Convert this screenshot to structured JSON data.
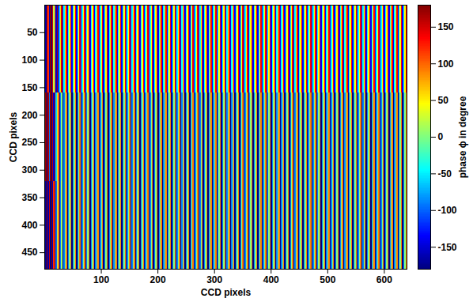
{
  "chart_data": {
    "type": "heatmap",
    "xlabel": "CCD pixels",
    "ylabel": "CCD pixels",
    "xlim": [
      0,
      640
    ],
    "ylim": [
      480,
      0
    ],
    "xticks": [
      100,
      200,
      300,
      400,
      500,
      600
    ],
    "yticks": [
      50,
      100,
      150,
      200,
      250,
      300,
      350,
      400,
      450
    ],
    "z": [
      [
        170,
        -170,
        160,
        120,
        -160,
        175,
        -175,
        150,
        20,
        100,
        -150,
        170,
        -120,
        -30,
        60,
        150,
        -135,
        -45,
        45,
        135,
        -135,
        -45,
        45,
        135,
        -135,
        -45,
        45,
        135,
        -135,
        -45,
        45,
        135,
        -135,
        -45,
        45,
        135,
        -135,
        -45,
        45,
        135,
        -135,
        -45,
        45,
        135,
        -135,
        -45,
        45,
        135,
        -135,
        -45,
        45,
        135,
        -135,
        -45,
        45,
        135,
        -135,
        -45,
        45,
        135,
        -135,
        -45,
        45,
        135,
        -135,
        -45,
        45,
        135,
        -135,
        -45,
        45,
        135,
        -135,
        -45,
        45,
        135,
        -135,
        -45,
        45,
        135,
        -135,
        -45,
        45,
        135,
        -135,
        -45,
        45,
        135,
        -135,
        -45,
        45,
        135,
        -135,
        -45,
        45,
        135,
        -135,
        -45,
        45,
        135,
        -135,
        -45,
        45,
        135,
        -135,
        -45,
        45,
        135,
        -135,
        -45,
        45,
        135,
        -135,
        -45,
        45,
        135,
        -135,
        -45,
        45,
        135,
        -135,
        -45,
        45,
        135,
        -135,
        -45,
        45,
        135,
        -135,
        -45,
        45,
        135,
        -135,
        -45,
        45,
        135,
        -135,
        -45,
        45,
        135,
        -135,
        -45,
        45,
        135,
        -135,
        -45,
        45,
        135,
        -135,
        -45,
        45,
        135,
        -135,
        -45,
        45,
        135,
        -135,
        -45,
        45,
        135,
        -135,
        -45,
        45,
        135,
        -135,
        -45,
        45,
        135,
        -135,
        -45,
        45,
        135,
        -135,
        -45,
        45,
        135,
        -135,
        -45,
        45,
        135,
        -135,
        -45,
        45,
        135,
        -135,
        -45,
        45,
        135,
        -135,
        -45,
        45,
        135,
        -135,
        -45,
        45,
        135,
        -135,
        -45,
        45,
        135,
        -135,
        -45,
        45,
        135,
        -135,
        -45,
        45,
        135,
        -135,
        -45,
        45,
        135,
        -135,
        -45,
        45,
        135,
        -135,
        -45,
        45,
        135,
        -135,
        -45,
        45,
        135,
        -135,
        -45,
        45,
        135,
        -135,
        -45,
        45,
        135,
        -135,
        -45,
        45,
        135,
        -135,
        -45,
        45,
        135,
        -135,
        -45,
        45,
        135,
        -135,
        -45,
        45,
        135,
        -135,
        -45,
        45,
        135,
        -135,
        -45,
        45,
        135,
        -135,
        -45,
        45,
        135,
        -135,
        -45,
        45,
        135,
        -135,
        -45,
        45,
        135,
        -135,
        -45,
        45,
        135,
        -135,
        -45,
        45,
        135,
        -135,
        -45,
        45,
        135,
        -135,
        -45,
        45,
        135,
        -135,
        -45,
        45,
        135,
        -135,
        -45,
        45,
        135,
        -135,
        -45,
        45,
        135,
        -135,
        -45,
        45,
        135,
        -135,
        -45,
        45,
        135,
        -135,
        -45,
        45,
        135,
        -135,
        -45,
        45,
        135,
        -135,
        -45,
        45,
        135,
        -135,
        -45,
        45,
        135
      ],
      [
        -175,
        175,
        -170,
        165,
        -90,
        178,
        -178,
        160,
        -150,
        170,
        -60,
        30,
        100,
        -170,
        -90,
        0,
        -180,
        -90,
        0,
        90,
        -180,
        -90,
        0,
        90,
        -180,
        -90,
        0,
        90,
        -180,
        -90,
        0,
        90,
        -180,
        -90,
        0,
        90,
        -180,
        -90,
        0,
        90,
        -180,
        -90,
        0,
        90,
        -180,
        -90,
        0,
        90,
        -180,
        -90,
        0,
        90,
        -180,
        -90,
        0,
        90,
        -180,
        -90,
        0,
        90,
        -180,
        -90,
        0,
        90,
        -180,
        -90,
        0,
        90,
        -180,
        -90,
        0,
        90,
        -180,
        -90,
        0,
        90,
        -180,
        -90,
        0,
        90,
        -180,
        -90,
        0,
        90,
        -180,
        -90,
        0,
        90,
        -180,
        -90,
        0,
        90,
        -180,
        -90,
        0,
        90,
        -180,
        -90,
        0,
        90,
        -180,
        -90,
        0,
        90,
        -180,
        -90,
        0,
        90,
        -180,
        -90,
        0,
        90,
        -180,
        -90,
        0,
        90,
        -180,
        -90,
        0,
        90,
        -180,
        -90,
        0,
        90,
        -180,
        -90,
        0,
        90,
        -180,
        -90,
        0,
        90,
        -180,
        -90,
        0,
        90,
        -180,
        -90,
        0,
        90,
        -180,
        -90,
        0,
        90,
        -180,
        -90,
        0,
        90,
        -180,
        -90,
        0,
        90,
        -180,
        -90,
        0,
        90,
        -180,
        -90,
        0,
        90,
        -180,
        -90,
        0,
        90,
        -180,
        -90,
        0,
        90,
        -180,
        -90,
        0,
        90,
        -180,
        -90,
        0,
        90,
        -180,
        -90,
        0,
        90,
        -180,
        -90,
        0,
        90,
        -180,
        -90,
        0,
        90,
        -180,
        -90,
        0,
        90,
        -180,
        -90,
        0,
        90,
        -180,
        -90,
        0,
        90,
        -180,
        -90,
        0,
        90,
        -180,
        -90,
        0,
        90,
        -180,
        -90,
        0,
        90,
        -180,
        -90,
        0,
        90,
        -180,
        -90,
        0,
        90,
        -180,
        -90,
        0,
        90,
        -180,
        -90,
        0,
        90,
        -180,
        -90,
        0,
        90,
        -180,
        -90,
        0,
        90,
        -180,
        -90,
        0,
        90,
        -180,
        -90,
        0,
        90,
        -180,
        -90,
        0,
        90,
        -180,
        -90,
        0,
        90,
        -180,
        -90,
        0,
        90,
        -180,
        -90,
        0,
        90,
        -180,
        -90,
        0,
        90,
        -180,
        -90,
        0,
        90,
        -180,
        -90,
        0,
        90,
        -180,
        -90,
        0,
        90,
        -180,
        -90,
        0,
        90,
        -180,
        -90,
        0,
        90,
        -180,
        -90,
        0,
        90,
        -180,
        -90,
        0,
        90,
        -180,
        -90,
        0,
        90,
        -180,
        -90,
        0,
        90,
        -180,
        -90,
        0,
        90,
        -180,
        -90,
        0,
        90,
        -180,
        -90,
        0,
        90,
        -180,
        -90,
        0,
        90,
        -180,
        -90,
        0,
        90
      ],
      [
        175,
        -175,
        170,
        -165,
        150,
        -178,
        178,
        -160,
        120,
        170,
        -100,
        20,
        90,
        -170,
        -90,
        10,
        -180,
        -90,
        0,
        90,
        -180,
        -90,
        0,
        90,
        -180,
        -90,
        0,
        90,
        -180,
        -90,
        0,
        90,
        -180,
        -90,
        0,
        90,
        -180,
        -90,
        0,
        90,
        -180,
        -90,
        0,
        90,
        -180,
        -90,
        0,
        90,
        -180,
        -90,
        0,
        90,
        -180,
        -90,
        0,
        90,
        -180,
        -90,
        0,
        90,
        -180,
        -90,
        0,
        90,
        -180,
        -90,
        0,
        90,
        -180,
        -90,
        0,
        90,
        -180,
        -90,
        0,
        90,
        -180,
        -90,
        0,
        90,
        -180,
        -90,
        0,
        90,
        -180,
        -90,
        0,
        90,
        -180,
        -90,
        0,
        90,
        -180,
        -90,
        0,
        90,
        -180,
        -90,
        0,
        90,
        -180,
        -90,
        0,
        90,
        -180,
        -90,
        0,
        90,
        -180,
        -90,
        0,
        90,
        -180,
        -90,
        0,
        90,
        -180,
        -90,
        0,
        90,
        -180,
        -90,
        0,
        90,
        -180,
        -90,
        0,
        90,
        -180,
        -90,
        0,
        90,
        -180,
        -90,
        0,
        90,
        -180,
        -90,
        0,
        90,
        -180,
        -90,
        0,
        90,
        -180,
        -90,
        0,
        90,
        -180,
        -90,
        0,
        90,
        -180,
        -90,
        0,
        90,
        -180,
        -90,
        0,
        90,
        -180,
        -90,
        0,
        90,
        -180,
        -90,
        0,
        90,
        -180,
        -90,
        0,
        90,
        -180,
        -90,
        0,
        90,
        -180,
        -90,
        0,
        90,
        -180,
        -90,
        0,
        90,
        -180,
        -90,
        0,
        90,
        -180,
        -90,
        0,
        90,
        -180,
        -90,
        0,
        90,
        -180,
        -90,
        0,
        90,
        -180,
        -90,
        0,
        90,
        -180,
        -90,
        0,
        90,
        -180,
        -90,
        0,
        90,
        -180,
        -90,
        0,
        90,
        -180,
        -90,
        0,
        90,
        -180,
        -90,
        0,
        90,
        -180,
        -90,
        0,
        90,
        -180,
        -90,
        0,
        90,
        -180,
        -90,
        0,
        90,
        -180,
        -90,
        0,
        90,
        -180,
        -90,
        0,
        90,
        -180,
        -90,
        0,
        90,
        -180,
        -90,
        0,
        90,
        -180,
        -90,
        0,
        90,
        -180,
        -90,
        0,
        90,
        -180,
        -90,
        0,
        90,
        -180,
        -90,
        0,
        90,
        -180,
        -90,
        0,
        90,
        -180,
        -90,
        0,
        90,
        -180,
        -90,
        0,
        90,
        -180,
        -90,
        0,
        90,
        -180,
        -90,
        0,
        90,
        -180,
        -90,
        0,
        90,
        -180,
        -90,
        0,
        90,
        -180,
        -90,
        0,
        90,
        -180,
        -90,
        0,
        90,
        -180,
        -90,
        0,
        90,
        -180,
        -90,
        0,
        90,
        -180,
        -90,
        0,
        90,
        -180,
        -90,
        0,
        90
      ]
    ],
    "colorbar": {
      "label": "phase ϕ in degree",
      "range": [
        -180,
        180
      ],
      "ticks": [
        -150,
        -100,
        -50,
        0,
        50,
        100,
        150
      ]
    }
  }
}
